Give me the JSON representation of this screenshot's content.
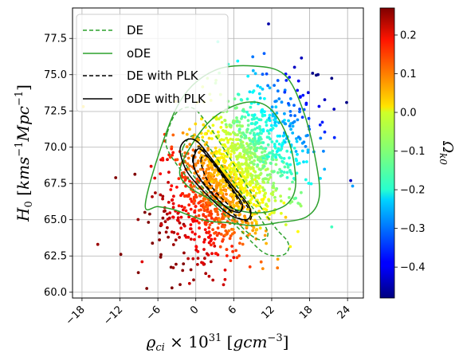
{
  "chart_data": {
    "type": "scatter",
    "title": "",
    "xlabel": "ϱci × 10^31 [gcm^-3]",
    "ylabel": "H0 [kms^-1 Mpc^-1]",
    "colorbar_label": "Ωk0",
    "xlim": [
      -19.5,
      26.5
    ],
    "ylim": [
      59.6,
      79.6
    ],
    "clim": [
      -0.48,
      0.27
    ],
    "x_ticks": [
      -18,
      -12,
      -6,
      0,
      6,
      12,
      18,
      24
    ],
    "x_tick_labels": [
      "−18",
      "−12",
      "−6",
      "0",
      "6",
      "12",
      "18",
      "24"
    ],
    "y_ticks": [
      60.0,
      62.5,
      65.0,
      67.5,
      70.0,
      72.5,
      75.0,
      77.5
    ],
    "y_tick_labels": [
      "60.0",
      "62.5",
      "65.0",
      "67.5",
      "70.0",
      "72.5",
      "75.0",
      "77.5"
    ],
    "cbar_ticks": [
      0.2,
      0.1,
      0.0,
      -0.1,
      -0.2,
      -0.3,
      -0.4
    ],
    "cbar_tick_labels": [
      "0.2",
      "0.1",
      "0.0",
      "−0.1",
      "−0.2",
      "−0.3",
      "−0.4"
    ],
    "grid": true,
    "colormap": "jet",
    "legend": {
      "placement": "upper-left",
      "entries": [
        {
          "label": "DE",
          "style": "dashed",
          "color": "#2ca02c"
        },
        {
          "label": "oDE",
          "style": "solid",
          "color": "#2ca02c"
        },
        {
          "label": "DE with PLK",
          "style": "dashed",
          "color": "#000000"
        },
        {
          "label": "oDE with PLK",
          "style": "solid",
          "color": "#000000"
        }
      ]
    },
    "contours": [
      {
        "series": "oDE",
        "level": "outer",
        "style": "solid",
        "color": "#2ca02c",
        "points": [
          [
            -8,
            66
          ],
          [
            -5.5,
            70
          ],
          [
            -2,
            73.5
          ],
          [
            3,
            75.3
          ],
          [
            9,
            75.6
          ],
          [
            14,
            75
          ],
          [
            17,
            72.5
          ],
          [
            19,
            69
          ],
          [
            19.5,
            66.5
          ],
          [
            17.5,
            65.2
          ],
          [
            13,
            64.8
          ],
          [
            9,
            64.6
          ],
          [
            5,
            64.8
          ],
          [
            2,
            64.9
          ],
          [
            -1,
            65.3
          ],
          [
            -3.5,
            65.7
          ],
          [
            -6,
            65.9
          ]
        ]
      },
      {
        "series": "oDE",
        "level": "inner",
        "style": "solid",
        "color": "#2ca02c",
        "points": [
          [
            -2.5,
            68.5
          ],
          [
            0,
            70.6
          ],
          [
            3,
            72.1
          ],
          [
            7,
            73
          ],
          [
            10.5,
            73
          ],
          [
            13,
            72
          ],
          [
            15,
            70
          ],
          [
            15.8,
            67.5
          ],
          [
            14.7,
            66.2
          ],
          [
            12,
            65.6
          ],
          [
            8.5,
            65.5
          ],
          [
            5,
            65.9
          ],
          [
            1.5,
            66.6
          ],
          [
            -1.5,
            67.4
          ]
        ]
      },
      {
        "series": "DE",
        "level": "outer",
        "style": "dashed",
        "color": "#2ca02c",
        "points": [
          [
            -4.5,
            71
          ],
          [
            -3,
            72.4
          ],
          [
            -0.5,
            72.7
          ],
          [
            2,
            71.5
          ],
          [
            5,
            69.5
          ],
          [
            9,
            66.7
          ],
          [
            12.5,
            64.5
          ],
          [
            14.5,
            63.5
          ],
          [
            14.5,
            62.8
          ],
          [
            13,
            62.5
          ],
          [
            10.5,
            62.8
          ],
          [
            7,
            64.3
          ],
          [
            3,
            66
          ],
          [
            -0.5,
            67.5
          ],
          [
            -3,
            68.8
          ],
          [
            -4.6,
            70
          ]
        ]
      },
      {
        "series": "DE",
        "level": "inner",
        "style": "dashed",
        "color": "#2ca02c",
        "points": [
          [
            -2,
            70
          ],
          [
            -0.5,
            70.8
          ],
          [
            1.5,
            70.3
          ],
          [
            4,
            68.8
          ],
          [
            7.5,
            66.7
          ],
          [
            10.5,
            64.9
          ],
          [
            11.4,
            64
          ],
          [
            10.5,
            63.6
          ],
          [
            8.5,
            64
          ],
          [
            5,
            65.5
          ],
          [
            2,
            66.8
          ],
          [
            -0.5,
            68.1
          ],
          [
            -2,
            69.2
          ]
        ]
      },
      {
        "series": "DE with PLK",
        "level": "outer",
        "style": "dashed",
        "color": "#000000",
        "points": [
          [
            -0.5,
            69.2
          ],
          [
            0.3,
            70
          ],
          [
            1.5,
            69.7
          ],
          [
            3.5,
            68.6
          ],
          [
            6,
            67.2
          ],
          [
            8,
            66
          ],
          [
            8.8,
            65.3
          ],
          [
            8.2,
            64.9
          ],
          [
            6.5,
            65.2
          ],
          [
            4,
            66.2
          ],
          [
            1.5,
            67.4
          ],
          [
            0,
            68.3
          ]
        ]
      },
      {
        "series": "DE with PLK",
        "level": "inner",
        "style": "dashed",
        "color": "#000000",
        "points": [
          [
            0.8,
            69.1
          ],
          [
            1.6,
            69.4
          ],
          [
            3,
            68.7
          ],
          [
            5,
            67.5
          ],
          [
            6.8,
            66.3
          ],
          [
            7.3,
            65.8
          ],
          [
            6.5,
            65.6
          ],
          [
            5,
            66.1
          ],
          [
            3,
            67
          ],
          [
            1.5,
            68
          ]
        ]
      },
      {
        "series": "oDE with PLK",
        "level": "outer",
        "style": "solid",
        "color": "#000000",
        "points": [
          [
            -2.5,
            69.8
          ],
          [
            -1.5,
            70.5
          ],
          [
            0.2,
            70.4
          ],
          [
            2.5,
            69.2
          ],
          [
            5.5,
            67.5
          ],
          [
            8,
            66.2
          ],
          [
            8.7,
            65.5
          ],
          [
            8,
            65
          ],
          [
            5.5,
            65.3
          ],
          [
            3,
            66.2
          ],
          [
            0.5,
            67.3
          ],
          [
            -1.5,
            68.4
          ]
        ]
      },
      {
        "series": "oDE with PLK",
        "level": "inner",
        "style": "solid",
        "color": "#000000",
        "points": [
          [
            -0.3,
            69.3
          ],
          [
            0.5,
            69.9
          ],
          [
            2,
            69.3
          ],
          [
            4,
            68.2
          ],
          [
            6.3,
            66.8
          ],
          [
            7.4,
            66
          ],
          [
            6.8,
            65.5
          ],
          [
            5,
            65.8
          ],
          [
            3,
            66.6
          ],
          [
            1,
            67.6
          ],
          [
            -0.2,
            68.5
          ]
        ]
      }
    ],
    "scatter": {
      "count": 1500,
      "trend": "Omega_k0 increases toward lower ϱci and lower H0 (red/orange lower-left), decreases toward higher ϱci and higher H0 (blue upper-right)",
      "notable_points": [
        {
          "x": 11.5,
          "y": 78.5,
          "omega_k0": -0.45
        },
        {
          "x": 24.5,
          "y": 67.7,
          "omega_k0": -0.43
        },
        {
          "x": -15.5,
          "y": 63.3,
          "omega_k0": 0.25
        },
        {
          "x": -1,
          "y": 60.6,
          "omega_k0": 0.22
        },
        {
          "x": -8.5,
          "y": 62.1,
          "omega_k0": 0.2
        },
        {
          "x": -17.8,
          "y": 72.8,
          "omega_k0": 0.02
        },
        {
          "x": 21.5,
          "y": 64.5,
          "omega_k0": -0.15
        }
      ]
    }
  }
}
